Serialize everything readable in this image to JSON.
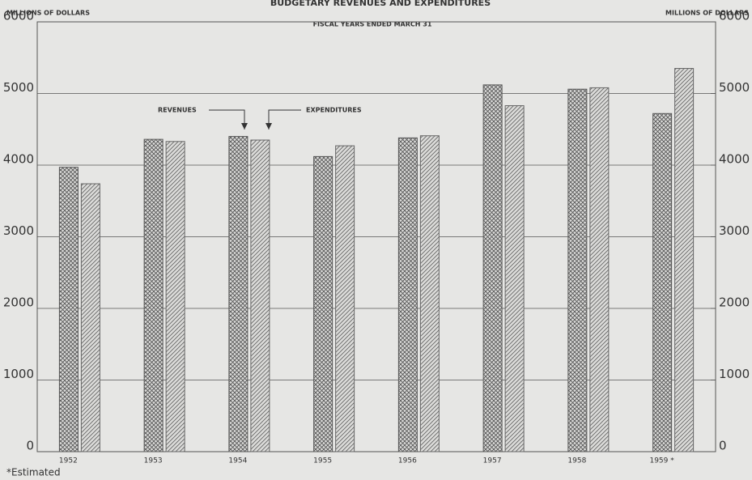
{
  "chart_data": {
    "type": "bar",
    "title": "BUDGETARY REVENUES AND EXPENDITURES",
    "subtitle": "FISCAL YEARS ENDED MARCH 31",
    "ylabel": "MILLIONS OF DOLLARS",
    "y2label": "MILLIONS OF DOLLARS",
    "annotations": [
      "REVENUES",
      "EXPENDITURES"
    ],
    "footnote": "*Estimated",
    "categories": [
      "1952",
      "1953",
      "1954",
      "1955",
      "1956",
      "1957",
      "1958",
      "1959 *"
    ],
    "series": [
      {
        "name": "REVENUES",
        "color": "#555555",
        "values": [
          3970,
          4360,
          4400,
          4120,
          4380,
          5120,
          5060,
          4720
        ]
      },
      {
        "name": "EXPENDITURES",
        "color": "#666666",
        "values": [
          3740,
          4330,
          4350,
          4270,
          4410,
          4830,
          5080,
          5350
        ]
      }
    ],
    "ylim": [
      0,
      6000
    ],
    "yticks": [
      0,
      1000,
      2000,
      3000,
      4000,
      5000,
      6000
    ],
    "y2lim": [
      0,
      6000
    ],
    "y2ticks": [
      0,
      1000,
      2000,
      3000,
      4000,
      5000,
      6000
    ],
    "grid": true
  }
}
